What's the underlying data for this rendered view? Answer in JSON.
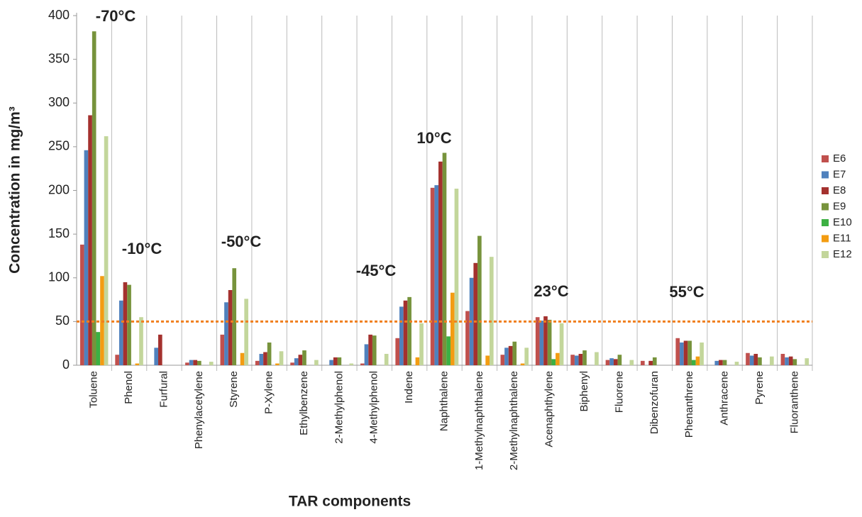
{
  "chart_data": {
    "type": "bar",
    "x_label": "TAR components",
    "y_label": "Concentration in mg/m³",
    "categories": [
      "Toluene",
      "Phenol",
      "Furfural",
      "Phenylacetylene",
      "Styrene",
      "P-Xylene",
      "Ethylbenzene",
      "2-Methylphenol",
      "4-Methylphenol",
      "Indene",
      "Naphthalene",
      "1-Methylnaphthalene",
      "2-Methylnaphthalene",
      "Acenaphthylene",
      "Biphenyl",
      "Fluorene",
      "Dibenzofuran",
      "Phenanthrene",
      "Anthracene",
      "Pyrene",
      "Fluoranthene"
    ],
    "series": [
      {
        "name": "E6",
        "color": "#c0504d",
        "values": [
          138,
          12,
          0,
          3,
          35,
          5,
          3,
          0,
          2,
          31,
          203,
          62,
          12,
          55,
          12,
          6,
          5,
          31,
          0,
          14,
          13
        ]
      },
      {
        "name": "E7",
        "color": "#4f81bd",
        "values": [
          246,
          74,
          20,
          6,
          72,
          13,
          8,
          6,
          24,
          67,
          206,
          100,
          20,
          51,
          11,
          8,
          0,
          26,
          5,
          11,
          9
        ]
      },
      {
        "name": "E8",
        "color": "#a4312e",
        "values": [
          286,
          95,
          35,
          6,
          86,
          15,
          12,
          9,
          35,
          74,
          233,
          117,
          22,
          56,
          13,
          7,
          5,
          28,
          6,
          13,
          10
        ]
      },
      {
        "name": "E9",
        "color": "#77933c",
        "values": [
          382,
          92,
          0,
          5,
          111,
          26,
          17,
          9,
          34,
          78,
          243,
          148,
          27,
          52,
          17,
          12,
          9,
          28,
          6,
          9,
          7
        ]
      },
      {
        "name": "E10",
        "color": "#3cb043",
        "values": [
          38,
          0,
          0,
          0,
          0,
          0,
          0,
          0,
          0,
          0,
          33,
          0,
          0,
          7,
          0,
          0,
          0,
          6,
          0,
          0,
          0
        ]
      },
      {
        "name": "E11",
        "color": "#f39c12",
        "values": [
          102,
          2,
          0,
          0,
          14,
          2,
          0,
          0,
          0,
          9,
          83,
          11,
          2,
          14,
          0,
          0,
          0,
          10,
          0,
          0,
          0
        ]
      },
      {
        "name": "E12",
        "color": "#c3d69b",
        "values": [
          262,
          55,
          0,
          4,
          76,
          16,
          6,
          2,
          13,
          48,
          202,
          124,
          20,
          48,
          15,
          6,
          0,
          26,
          4,
          10,
          8
        ]
      }
    ],
    "annotations": [
      "-70°C",
      "-10°C",
      "-50°C",
      "-45°C",
      "10°C",
      "23°C",
      "55°C"
    ],
    "reference_line": {
      "value": 50,
      "color": "#f07f1e"
    },
    "ylim": [
      0,
      400
    ],
    "yticks": [
      0,
      50,
      100,
      150,
      200,
      250,
      300,
      350,
      400
    ],
    "grid": "vertical",
    "legend": "right"
  }
}
